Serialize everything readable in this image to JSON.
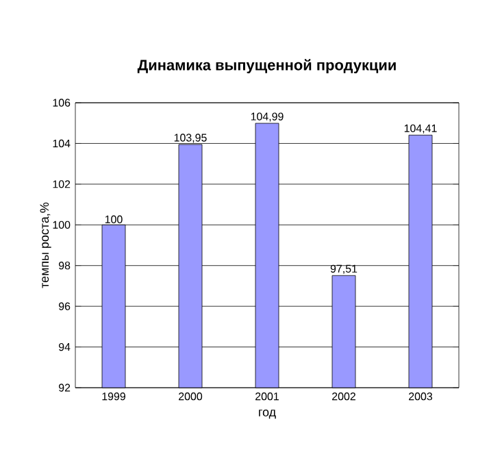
{
  "chart_data": {
    "type": "bar",
    "title": "Динамика выпущенной продукции",
    "xlabel": "год",
    "ylabel": "темпы роста,%",
    "categories": [
      "1999",
      "2000",
      "2001",
      "2002",
      "2003"
    ],
    "values": [
      100,
      103.95,
      104.99,
      97.51,
      104.41
    ],
    "value_labels": [
      "100",
      "103,95",
      "104,99",
      "97,51",
      "104,41"
    ],
    "color": "#9999ff",
    "ylim": [
      92,
      106
    ],
    "yticks": [
      92,
      94,
      96,
      98,
      100,
      102,
      104,
      106
    ],
    "grid": "y"
  }
}
